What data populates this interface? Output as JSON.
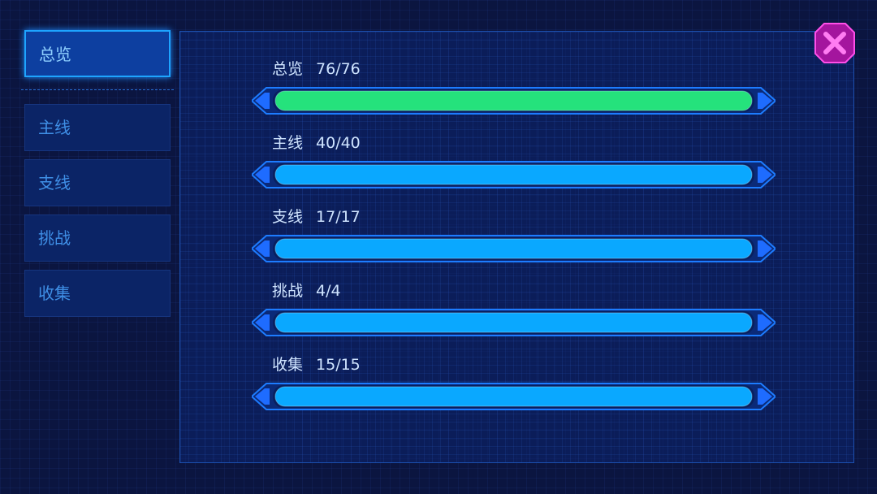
{
  "tabs": [
    {
      "label": "总览",
      "active": true
    },
    {
      "label": "主线",
      "active": false
    },
    {
      "label": "支线",
      "active": false
    },
    {
      "label": "挑战",
      "active": false
    },
    {
      "label": "收集",
      "active": false
    }
  ],
  "rows": [
    {
      "label": "总览",
      "value": 76,
      "max": 76,
      "value_label": "76/76",
      "color": "#25e27c"
    },
    {
      "label": "主线",
      "value": 40,
      "max": 40,
      "value_label": "40/40",
      "color": "#0aa8ff"
    },
    {
      "label": "支线",
      "value": 17,
      "max": 17,
      "value_label": "17/17",
      "color": "#0aa8ff"
    },
    {
      "label": "挑战",
      "value": 4,
      "max": 4,
      "value_label": "4/4",
      "color": "#0aa8ff"
    },
    {
      "label": "收集",
      "value": 15,
      "max": 15,
      "value_label": "15/15",
      "color": "#0aa8ff"
    }
  ]
}
